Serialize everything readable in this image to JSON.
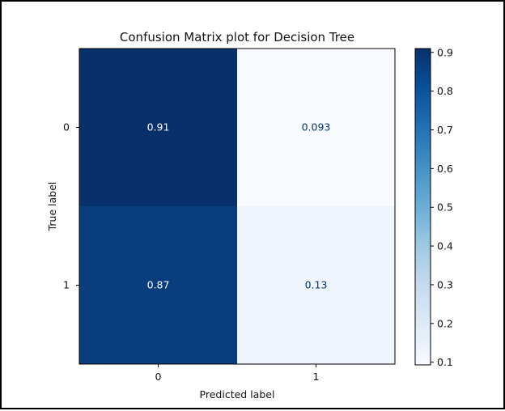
{
  "chart_data": {
    "type": "heatmap",
    "title": "Confusion Matrix plot for Decision Tree",
    "xlabel": "Predicted label",
    "ylabel": "True label",
    "x_categories": [
      "0",
      "1"
    ],
    "y_categories": [
      "0",
      "1"
    ],
    "values": [
      [
        0.91,
        0.093
      ],
      [
        0.87,
        0.13
      ]
    ],
    "value_labels": [
      [
        "0.91",
        "0.093"
      ],
      [
        "0.87",
        "0.13"
      ]
    ],
    "colormap": "Blues",
    "colorbar": {
      "min": 0.093,
      "max": 0.91,
      "ticks": [
        "0.1",
        "0.2",
        "0.3",
        "0.4",
        "0.5",
        "0.6",
        "0.7",
        "0.8",
        "0.9"
      ]
    },
    "grid": false
  }
}
